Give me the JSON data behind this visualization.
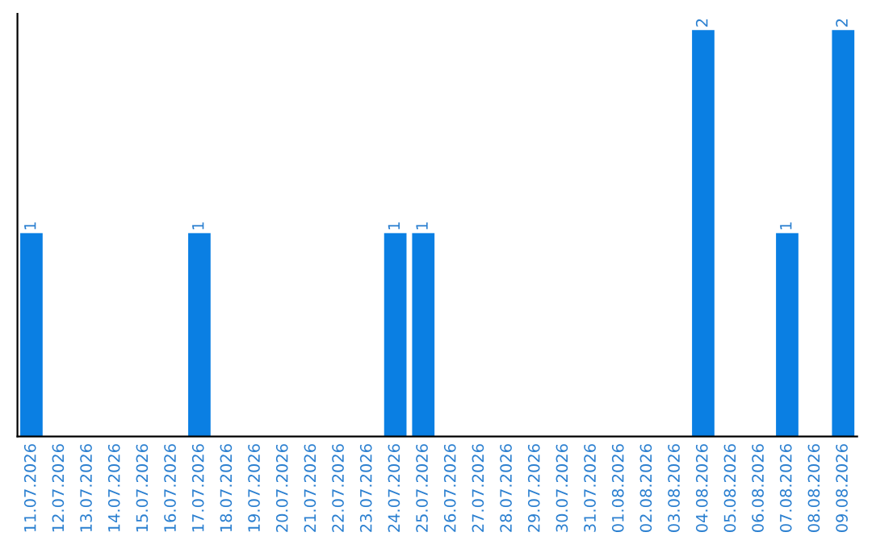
{
  "chart_data": {
    "type": "bar",
    "categories": [
      "11.07.2026",
      "12.07.2026",
      "13.07.2026",
      "14.07.2026",
      "15.07.2026",
      "16.07.2026",
      "17.07.2026",
      "18.07.2026",
      "19.07.2026",
      "20.07.2026",
      "21.07.2026",
      "22.07.2026",
      "23.07.2026",
      "24.07.2026",
      "25.07.2026",
      "26.07.2026",
      "27.07.2026",
      "28.07.2026",
      "29.07.2026",
      "30.07.2026",
      "31.07.2026",
      "01.08.2026",
      "02.08.2026",
      "03.08.2026",
      "04.08.2026",
      "05.08.2026",
      "06.08.2026",
      "07.08.2026",
      "08.08.2026",
      "09.08.2026"
    ],
    "values": [
      1,
      0,
      0,
      0,
      0,
      0,
      1,
      0,
      0,
      0,
      0,
      0,
      0,
      1,
      1,
      0,
      0,
      0,
      0,
      0,
      0,
      0,
      0,
      0,
      2,
      0,
      0,
      1,
      0,
      2
    ],
    "value_labels": [
      "1",
      null,
      null,
      null,
      null,
      null,
      "1",
      null,
      null,
      null,
      null,
      null,
      null,
      "1",
      "1",
      null,
      null,
      null,
      null,
      null,
      null,
      null,
      null,
      null,
      "2",
      null,
      null,
      "1",
      null,
      "2"
    ],
    "color": "#0a7fe3",
    "tick_labels": "x",
    "grid": false,
    "legend": false
  }
}
